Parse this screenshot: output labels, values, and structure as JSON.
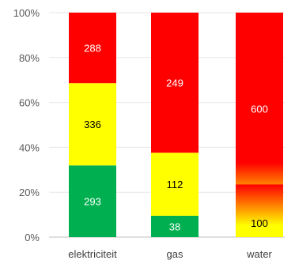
{
  "chart_data": {
    "type": "bar",
    "stacked": "percent",
    "categories": [
      "elektriciteit",
      "gas",
      "water"
    ],
    "series": [
      {
        "color": "#00b050",
        "values": [
          293,
          38,
          null
        ],
        "labels": [
          "293",
          "38",
          ""
        ]
      },
      {
        "color": "#ffff00",
        "values": [
          336,
          112,
          100
        ],
        "labels": [
          "336",
          "112",
          "100"
        ]
      },
      {
        "color": "#ff0000",
        "values": [
          288,
          249,
          600
        ],
        "labels": [
          "288",
          "249",
          "600"
        ]
      }
    ],
    "y_ticks": [
      "0%",
      "20%",
      "40%",
      "60%",
      "80%",
      "100%"
    ],
    "ylim": [
      0,
      100
    ],
    "grid": true,
    "legend": "none",
    "water_segment_blend": "gradient yellow to red",
    "label_colors": {
      "#00b050": "#ffffff",
      "#ffff00": "#000000",
      "#ff0000": "#ffffff"
    }
  }
}
